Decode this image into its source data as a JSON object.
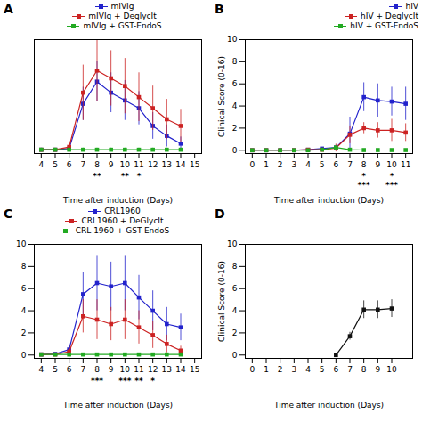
{
  "chart_data": [
    {
      "type": "line",
      "title": "A",
      "xlabel": "Time after induction (Days)",
      "x": [
        4,
        5,
        6,
        7,
        8,
        9,
        10,
        11,
        12,
        13,
        14
      ],
      "series": [
        {
          "name": "mIVIg",
          "color": "#2222cc",
          "values": [
            0.05,
            0.05,
            0.15,
            4.2,
            6.2,
            5.2,
            4.5,
            3.8,
            2.2,
            1.3,
            0.6
          ],
          "errors": [
            0.05,
            0.05,
            0.2,
            1.5,
            1.8,
            1.8,
            1.8,
            1.5,
            1.2,
            1.0,
            0.6
          ]
        },
        {
          "name": "mIVIg + DeglycIt",
          "color": "#cc2222",
          "values": [
            0.05,
            0.05,
            0.3,
            5.2,
            7.2,
            6.5,
            5.8,
            4.8,
            3.8,
            2.8,
            2.2
          ],
          "errors": [
            0.05,
            0.05,
            0.5,
            2.5,
            2.8,
            2.5,
            2.5,
            2.2,
            2.0,
            1.8,
            1.5
          ]
        },
        {
          "name": "mIVIg + GST-EndoS",
          "color": "#22aa22",
          "values": [
            0.05,
            0.05,
            0.05,
            0.05,
            0.05,
            0.05,
            0.05,
            0.05,
            0.05,
            0.05,
            0.05
          ],
          "errors": [
            0.15,
            0.15,
            0.15,
            0.15,
            0.15,
            0.15,
            0.15,
            0.15,
            0.15,
            0.15,
            0.15
          ]
        }
      ],
      "xlim": [
        3.5,
        15.5
      ],
      "ylim": [
        -0.3,
        10
      ],
      "xticks": [
        4,
        5,
        6,
        7,
        8,
        9,
        10,
        11,
        12,
        13,
        14,
        15
      ],
      "yticks": [],
      "tick_labels": "x",
      "legend": "upper center",
      "marker": "square",
      "annotations": [
        {
          "x": 8,
          "text": "**"
        },
        {
          "x": 10,
          "text": "**"
        },
        {
          "x": 11,
          "text": "*"
        }
      ]
    },
    {
      "type": "line",
      "title": "B",
      "xlabel": "Time after induction (Days)",
      "ylabel": "Clinical Score (0-16)",
      "x": [
        0,
        1,
        2,
        3,
        4,
        5,
        6,
        7,
        8,
        9,
        10,
        11
      ],
      "series": [
        {
          "name": "hIV",
          "color": "#2222cc",
          "values": [
            0.0,
            0.0,
            0.0,
            0.0,
            0.05,
            0.15,
            0.25,
            1.5,
            4.8,
            4.5,
            4.4,
            4.2
          ],
          "errors": [
            0.0,
            0.0,
            0.0,
            0.0,
            0.05,
            0.1,
            0.2,
            1.5,
            1.3,
            1.5,
            1.3,
            1.5
          ]
        },
        {
          "name": "hIV + DeglycIt",
          "color": "#cc2222",
          "values": [
            0.0,
            0.0,
            0.0,
            0.0,
            0.05,
            0.05,
            0.2,
            1.4,
            2.0,
            1.8,
            1.8,
            1.6
          ],
          "errors": [
            0.0,
            0.0,
            0.0,
            0.0,
            0.05,
            0.05,
            0.35,
            0.8,
            0.5,
            0.7,
            1.0,
            0.8
          ]
        },
        {
          "name": "hIV + GST-EndoS",
          "color": "#22aa22",
          "values": [
            0.0,
            0.0,
            0.0,
            0.0,
            0.0,
            0.05,
            0.25,
            0.05,
            0.02,
            0.02,
            0.02,
            0.02
          ],
          "errors": [
            0.0,
            0.0,
            0.0,
            0.0,
            0.0,
            0.05,
            0.1,
            0.05,
            0.02,
            0.02,
            0.02,
            0.02
          ]
        }
      ],
      "xlim": [
        -0.5,
        11.5
      ],
      "ylim": [
        -0.3,
        10
      ],
      "xticks": [
        0,
        1,
        2,
        3,
        4,
        5,
        6,
        7,
        8,
        9,
        10,
        11
      ],
      "yticks": [
        0,
        2,
        4,
        6,
        8,
        10
      ],
      "legend": "upper right",
      "marker": "square",
      "annotations": [
        {
          "x": 8,
          "text": "*"
        },
        {
          "x": 10,
          "text": "*"
        },
        {
          "x": 8,
          "text": "***"
        },
        {
          "x": 10,
          "text": "***"
        }
      ]
    },
    {
      "type": "line",
      "title": "C",
      "xlabel": "Time after induction (Days)",
      "x": [
        4,
        5,
        6,
        7,
        8,
        9,
        10,
        11,
        12,
        13,
        14
      ],
      "series": [
        {
          "name": "CRL1960",
          "color": "#2222cc",
          "values": [
            0.05,
            0.1,
            0.5,
            5.5,
            6.5,
            6.2,
            6.5,
            5.2,
            4.0,
            2.8,
            2.5
          ],
          "errors": [
            0.05,
            0.1,
            0.5,
            2.0,
            2.5,
            2.2,
            2.5,
            2.0,
            1.8,
            1.5,
            1.2
          ]
        },
        {
          "name": "CRL1960 + DeGlycIt",
          "color": "#cc2222",
          "values": [
            0.05,
            0.05,
            0.3,
            3.5,
            3.2,
            2.8,
            3.2,
            2.5,
            1.8,
            1.0,
            0.4
          ],
          "errors": [
            0.05,
            0.05,
            0.5,
            1.5,
            1.8,
            1.5,
            1.8,
            1.5,
            1.2,
            0.8,
            0.4
          ]
        },
        {
          "name": "CRL 1960 + GST-EndoS",
          "color": "#22aa22",
          "values": [
            0.05,
            0.05,
            0.05,
            0.05,
            0.05,
            0.05,
            0.05,
            0.05,
            0.05,
            0.05,
            0.05
          ],
          "errors": [
            0.05,
            0.05,
            0.05,
            0.05,
            0.05,
            0.05,
            0.05,
            0.05,
            0.05,
            0.05,
            0.05
          ]
        }
      ],
      "xlim": [
        3.5,
        15.5
      ],
      "ylim": [
        -0.3,
        10
      ],
      "xticks": [
        4,
        5,
        6,
        7,
        8,
        9,
        10,
        11,
        12,
        13,
        14,
        15
      ],
      "yticks": [
        0,
        2,
        4,
        6,
        8,
        10
      ],
      "legend": "upper center",
      "marker": "square",
      "annotations": [
        {
          "x": 8,
          "text": "***"
        },
        {
          "x": 10,
          "text": "***"
        },
        {
          "x": 11,
          "text": "**"
        },
        {
          "x": 12,
          "text": "*"
        }
      ]
    },
    {
      "type": "line",
      "title": "D",
      "xlabel": "Time after induction (Days)",
      "ylabel": "Clinical Score (0-16)",
      "x": [
        6,
        7,
        8,
        9,
        10
      ],
      "series": [
        {
          "color": "#111111",
          "values": [
            0.0,
            1.7,
            4.1,
            4.1,
            4.2
          ],
          "errors": [
            0.05,
            0.35,
            0.8,
            0.8,
            0.8
          ]
        }
      ],
      "xlim": [
        -0.5,
        11.5
      ],
      "ylim": [
        -0.3,
        10
      ],
      "xticks": [
        0,
        1,
        2,
        3,
        4,
        5,
        6,
        7,
        8,
        9,
        10
      ],
      "yticks": [
        0,
        2,
        4,
        6,
        8,
        10
      ],
      "marker": "square"
    }
  ]
}
